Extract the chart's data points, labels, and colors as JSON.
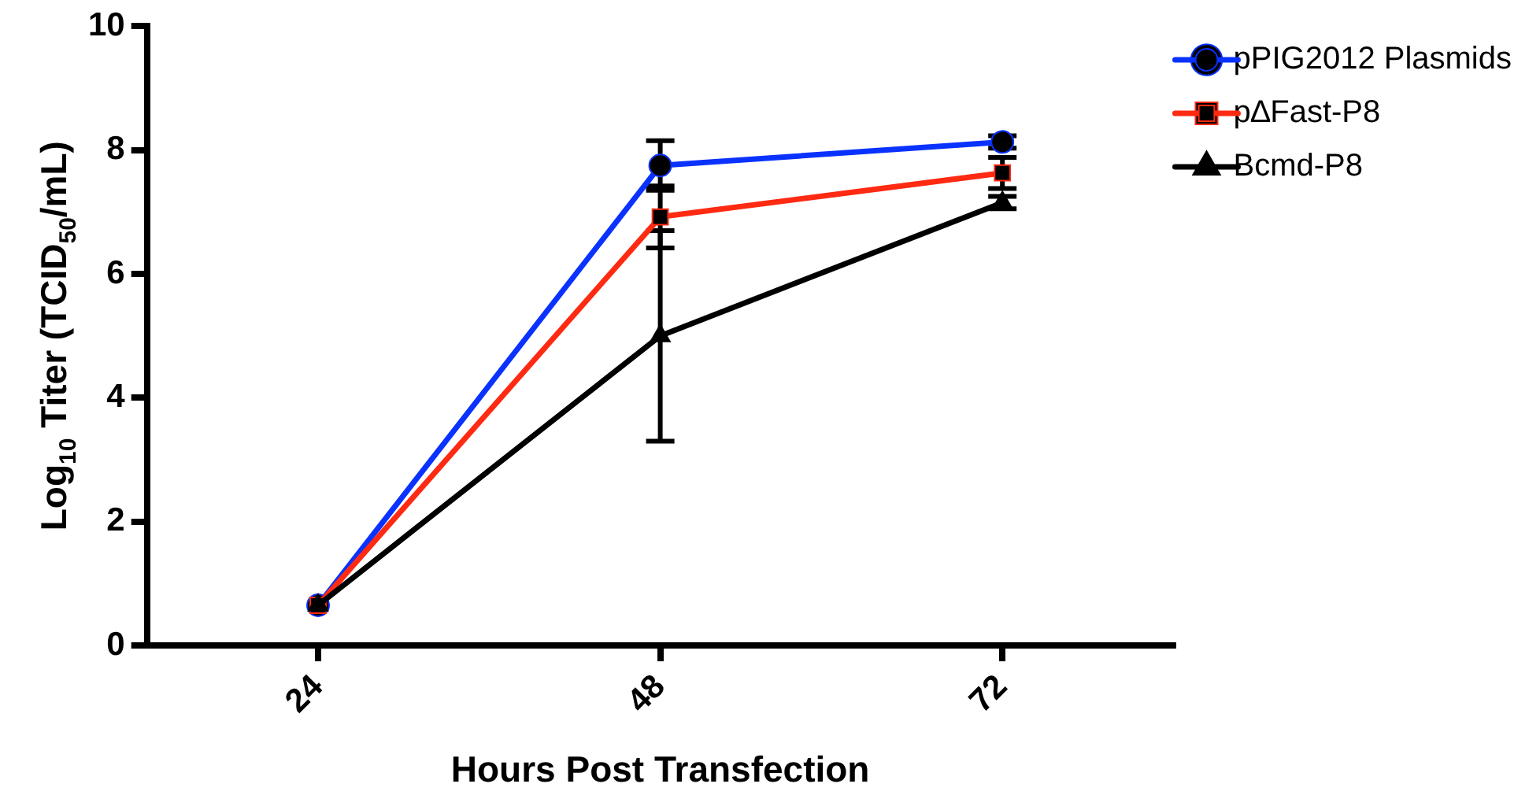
{
  "chart_data": {
    "type": "line",
    "xlabel": "Hours Post Transfection",
    "ylabel": "Log$_{10}$ Titer (TCID$_{50}$/mL)",
    "x": [
      24,
      48,
      72
    ],
    "xlim": [
      12,
      84
    ],
    "xticks": [
      24,
      48,
      72
    ],
    "ylim": [
      0,
      10
    ],
    "yticks": [
      0,
      2,
      4,
      6,
      8,
      10
    ],
    "grid": false,
    "legend": "top right",
    "line_style": "solid",
    "series": [
      {
        "name": "pPIG2012 Plasmids",
        "color": "#0a32ff",
        "marker": "circle",
        "values": [
          0.65,
          7.75,
          8.13
        ],
        "errors": [
          null,
          0.4,
          0.1
        ]
      },
      {
        "name": "p∆Fast-P8",
        "color": "#ff2a12",
        "marker": "square",
        "values": [
          0.65,
          6.92,
          7.63
        ],
        "errors": [
          null,
          0.5,
          0.25
        ]
      },
      {
        "name": "Bcmd-P8",
        "color": "#000000",
        "marker": "triangle",
        "values": [
          0.65,
          5.0,
          7.15
        ],
        "errors": [
          null,
          1.7,
          0.1
        ]
      }
    ]
  }
}
